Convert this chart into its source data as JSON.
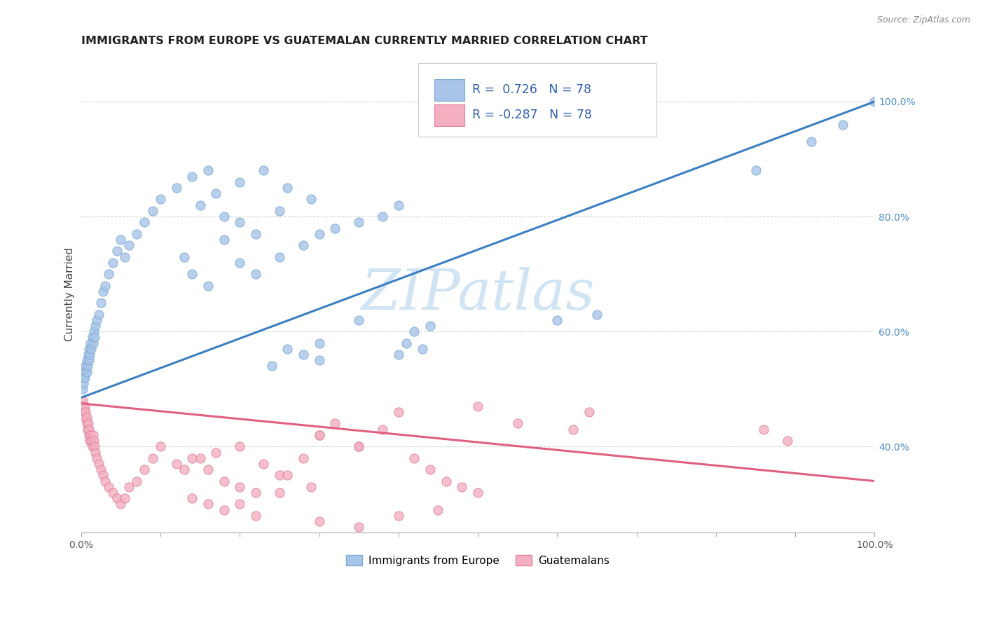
{
  "title": "IMMIGRANTS FROM EUROPE VS GUATEMALAN CURRENTLY MARRIED CORRELATION CHART",
  "source": "Source: ZipAtlas.com",
  "ylabel": "Currently Married",
  "blue_scatter_color": "#a8c4e8",
  "blue_scatter_edge": "#7aaad4",
  "pink_scatter_color": "#f4b0c0",
  "pink_scatter_edge": "#e080a0",
  "blue_line_color": "#3a7fc1",
  "pink_line_color": "#e06080",
  "right_tick_color": "#5090c8",
  "grid_color": "#cccccc",
  "watermark_color": "#d0e4f4",
  "legend_border": "#cccccc",
  "legend_text_color": "#3060b0",
  "R_blue": "0.726",
  "R_pink": "-0.287",
  "N": "78",
  "xlim": [
    0.0,
    1.0
  ],
  "ylim": [
    0.25,
    1.08
  ],
  "right_yticks": [
    0.4,
    0.6,
    0.8,
    1.0
  ],
  "right_yticklabels": [
    "40.0%",
    "60.0%",
    "80.0%",
    "100.0%"
  ],
  "blue_x": [
    0.002,
    0.003,
    0.004,
    0.005,
    0.005,
    0.006,
    0.007,
    0.007,
    0.008,
    0.009,
    0.01,
    0.01,
    0.011,
    0.012,
    0.013,
    0.014,
    0.015,
    0.016,
    0.017,
    0.018,
    0.02,
    0.022,
    0.025,
    0.028,
    0.03,
    0.035,
    0.04,
    0.045,
    0.05,
    0.055,
    0.06,
    0.07,
    0.08,
    0.09,
    0.1,
    0.12,
    0.14,
    0.16,
    0.18,
    0.2,
    0.22,
    0.25,
    0.28,
    0.3,
    0.32,
    0.35,
    0.38,
    0.4,
    0.13,
    0.15,
    0.17,
    0.2,
    0.23,
    0.26,
    0.29,
    0.2,
    0.25,
    0.22,
    0.18,
    0.16,
    0.14,
    0.3,
    0.35,
    0.6,
    0.65,
    0.85,
    0.92,
    0.96,
    1.0,
    0.4,
    0.41,
    0.42,
    0.43,
    0.44,
    0.3,
    0.28,
    0.26,
    0.24
  ],
  "blue_y": [
    0.5,
    0.51,
    0.52,
    0.53,
    0.52,
    0.54,
    0.53,
    0.55,
    0.54,
    0.56,
    0.55,
    0.57,
    0.56,
    0.58,
    0.57,
    0.59,
    0.58,
    0.6,
    0.59,
    0.61,
    0.62,
    0.63,
    0.65,
    0.67,
    0.68,
    0.7,
    0.72,
    0.74,
    0.76,
    0.73,
    0.75,
    0.77,
    0.79,
    0.81,
    0.83,
    0.85,
    0.87,
    0.88,
    0.76,
    0.72,
    0.7,
    0.73,
    0.75,
    0.77,
    0.78,
    0.79,
    0.8,
    0.82,
    0.73,
    0.82,
    0.84,
    0.86,
    0.88,
    0.85,
    0.83,
    0.79,
    0.81,
    0.77,
    0.8,
    0.68,
    0.7,
    0.58,
    0.62,
    0.62,
    0.63,
    0.88,
    0.93,
    0.96,
    1.0,
    0.56,
    0.58,
    0.6,
    0.57,
    0.61,
    0.55,
    0.56,
    0.57,
    0.54
  ],
  "pink_x": [
    0.002,
    0.003,
    0.004,
    0.005,
    0.005,
    0.006,
    0.007,
    0.007,
    0.008,
    0.009,
    0.01,
    0.01,
    0.011,
    0.012,
    0.013,
    0.014,
    0.015,
    0.016,
    0.017,
    0.018,
    0.02,
    0.022,
    0.025,
    0.028,
    0.03,
    0.035,
    0.04,
    0.045,
    0.05,
    0.055,
    0.06,
    0.07,
    0.08,
    0.09,
    0.1,
    0.12,
    0.14,
    0.16,
    0.18,
    0.2,
    0.22,
    0.25,
    0.28,
    0.3,
    0.32,
    0.35,
    0.38,
    0.4,
    0.13,
    0.15,
    0.17,
    0.2,
    0.23,
    0.26,
    0.29,
    0.2,
    0.25,
    0.22,
    0.18,
    0.16,
    0.14,
    0.3,
    0.35,
    0.5,
    0.55,
    0.62,
    0.64,
    0.86,
    0.89,
    0.42,
    0.44,
    0.46,
    0.48,
    0.5,
    0.3,
    0.35,
    0.4,
    0.45
  ],
  "pink_y": [
    0.48,
    0.47,
    0.46,
    0.47,
    0.45,
    0.46,
    0.44,
    0.45,
    0.43,
    0.44,
    0.42,
    0.43,
    0.41,
    0.42,
    0.41,
    0.4,
    0.42,
    0.41,
    0.4,
    0.39,
    0.38,
    0.37,
    0.36,
    0.35,
    0.34,
    0.33,
    0.32,
    0.31,
    0.3,
    0.31,
    0.33,
    0.34,
    0.36,
    0.38,
    0.4,
    0.37,
    0.38,
    0.36,
    0.34,
    0.33,
    0.32,
    0.35,
    0.38,
    0.42,
    0.44,
    0.4,
    0.43,
    0.46,
    0.36,
    0.38,
    0.39,
    0.4,
    0.37,
    0.35,
    0.33,
    0.3,
    0.32,
    0.28,
    0.29,
    0.3,
    0.31,
    0.42,
    0.4,
    0.47,
    0.44,
    0.43,
    0.46,
    0.43,
    0.41,
    0.38,
    0.36,
    0.34,
    0.33,
    0.32,
    0.27,
    0.26,
    0.28,
    0.29
  ]
}
